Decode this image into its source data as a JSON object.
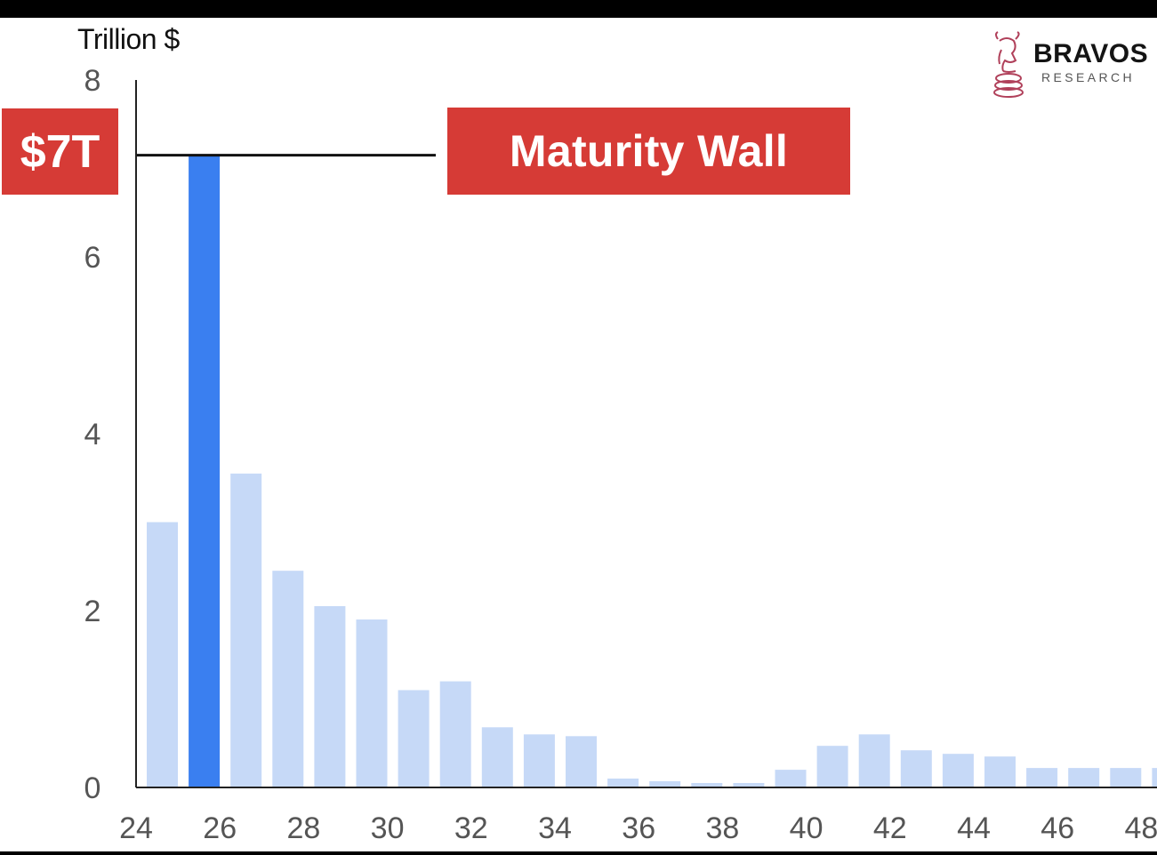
{
  "logo": {
    "title": "BRAVOS",
    "subtitle": "RESEARCH"
  },
  "callouts": {
    "left": "$7T",
    "right": "Maturity Wall"
  },
  "colors": {
    "bar_light": "#c6d9f7",
    "bar_highlight": "#3a7ff0",
    "callout": "#d63b36",
    "axis": "#222222"
  },
  "chart_data": {
    "type": "bar",
    "title": "",
    "ylabel": "Trillion $",
    "xlabel": "",
    "ylim": [
      0,
      8
    ],
    "yticks": [
      0,
      2,
      4,
      6,
      8
    ],
    "xticks": [
      "24",
      "26",
      "28",
      "30",
      "32",
      "34",
      "36",
      "38",
      "40",
      "42",
      "44",
      "46",
      "48"
    ],
    "categories": [
      "24",
      "25",
      "26",
      "27",
      "28",
      "29",
      "30",
      "31",
      "32",
      "33",
      "34",
      "35",
      "36",
      "37",
      "38",
      "39",
      "40",
      "41",
      "42",
      "43",
      "44",
      "45",
      "46",
      "47",
      "48"
    ],
    "values": [
      3.0,
      7.15,
      3.55,
      2.45,
      2.05,
      1.9,
      1.1,
      1.2,
      0.68,
      0.6,
      0.58,
      0.1,
      0.07,
      0.05,
      0.05,
      0.2,
      0.47,
      0.6,
      0.42,
      0.38,
      0.35,
      0.22,
      0.22,
      0.22,
      0.22
    ],
    "highlight_index": 1,
    "reference_line": {
      "value": 7.15,
      "label": "$7T"
    },
    "annotations": [
      "Maturity Wall"
    ],
    "grid": false
  }
}
